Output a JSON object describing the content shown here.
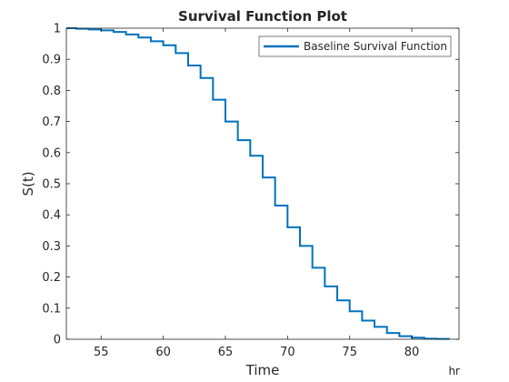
{
  "chart_data": {
    "type": "line",
    "step": true,
    "title": "Survival Function Plot",
    "xlabel": "Time",
    "ylabel": "S(t)",
    "x_units": "hr",
    "xlim": [
      52.2,
      83.8
    ],
    "ylim": [
      0,
      1
    ],
    "xticks": [
      55,
      60,
      65,
      70,
      75,
      80
    ],
    "yticks": [
      0,
      0.1,
      0.2,
      0.3,
      0.4,
      0.5,
      0.6,
      0.7,
      0.8,
      0.9,
      1
    ],
    "grid": false,
    "legend_position": "top-right",
    "series": [
      {
        "name": "Baseline Survival Function",
        "color": "#0072BD",
        "x": [
          52.2,
          53,
          54,
          55,
          56,
          57,
          58,
          59,
          60,
          61,
          62,
          63,
          64,
          65,
          66,
          67,
          68,
          69,
          70,
          71,
          72,
          73,
          74,
          75,
          76,
          77,
          78,
          79,
          80,
          81,
          82,
          83
        ],
        "y": [
          1.0,
          0.998,
          0.996,
          0.993,
          0.988,
          0.98,
          0.97,
          0.958,
          0.945,
          0.92,
          0.88,
          0.84,
          0.77,
          0.7,
          0.64,
          0.59,
          0.52,
          0.43,
          0.36,
          0.3,
          0.23,
          0.17,
          0.125,
          0.09,
          0.06,
          0.04,
          0.02,
          0.01,
          0.005,
          0.002,
          0.001,
          0.0
        ]
      }
    ]
  }
}
